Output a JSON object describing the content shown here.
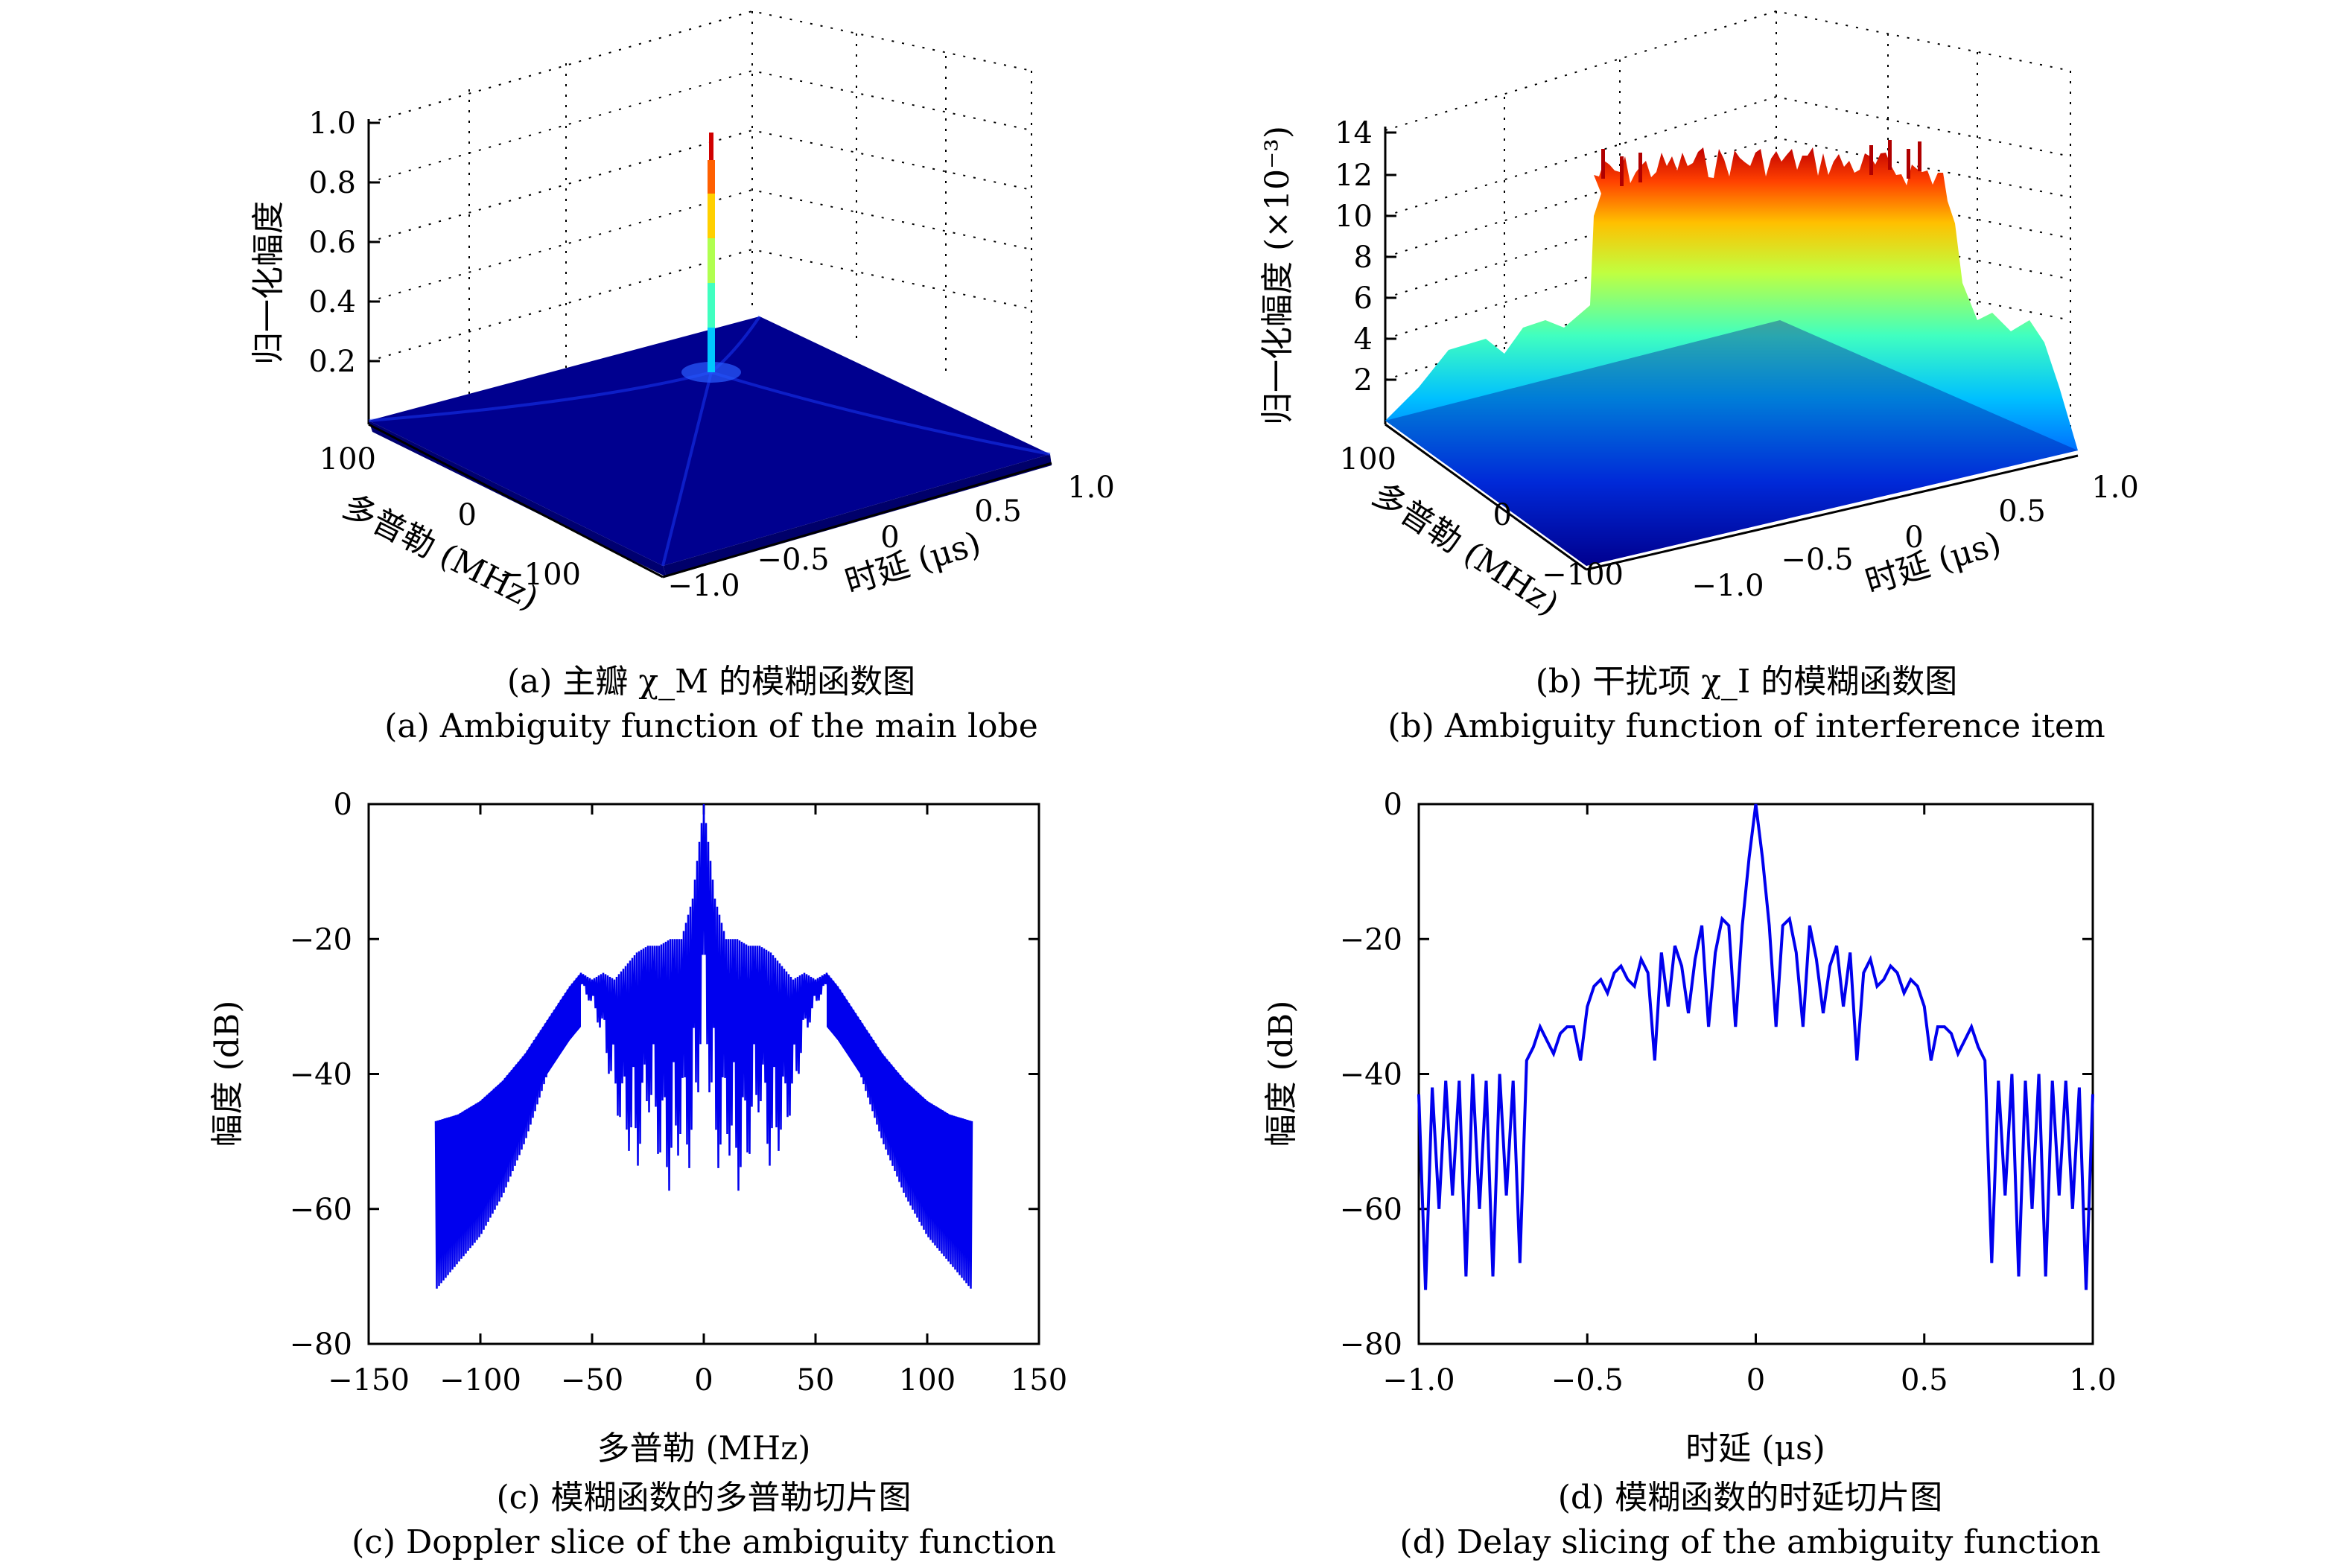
{
  "captions": {
    "a_cn": "(a) 主瓣 χ_M 的模糊函数图",
    "a_en": "(a) Ambiguity function of the main lobe",
    "b_cn": "(b) 干扰项 χ_I 的模糊函数图",
    "b_en": "(b) Ambiguity function of interference item",
    "c_cn": "(c) 模糊函数的多普勒切片图",
    "c_en": "(c) Doppler slice of the ambiguity function",
    "d_cn": "(d) 模糊函数的时延切片图",
    "d_en": "(d) Delay slicing of the ambiguity function"
  },
  "colors": {
    "line": "#0000ee",
    "surface_low": "#00008f",
    "surface_high": "#ff0000"
  },
  "chart_data": [
    {
      "type": "surface",
      "zlabel": "归一化幅度",
      "xlabel": "时延 (μs)",
      "ylabel": "多普勒 (MHz)",
      "z_ticks": [
        "0.2",
        "0.4",
        "0.6",
        "0.8",
        "1.0"
      ],
      "x_ticks": [
        "−1.0",
        "−0.5",
        "0",
        "0.5",
        "1.0"
      ],
      "y_ticks": [
        "100",
        "0",
        "−100"
      ],
      "zlim": [
        0,
        1.0
      ],
      "peak": {
        "x": 0,
        "y": 0,
        "z": 1.0
      },
      "floor_level": 0.01,
      "colormap": "jet"
    },
    {
      "type": "surface",
      "zlabel": "归一化幅度 (×10⁻³)",
      "xlabel": "时延 (μs)",
      "ylabel": "多普勒 (MHz)",
      "z_ticks": [
        "2",
        "4",
        "6",
        "8",
        "10",
        "12",
        "14"
      ],
      "x_ticks": [
        "−1.0",
        "−0.5",
        "0",
        "0.5",
        "1.0"
      ],
      "y_ticks": [
        "100",
        "0",
        "−100"
      ],
      "zlim": [
        0,
        14
      ],
      "plateau_level": 11.5,
      "shoulder_level": 4,
      "colormap": "jet"
    },
    {
      "type": "line",
      "xlabel": "多普勒 (MHz)",
      "ylabel": "幅度 (dB)",
      "xlim": [
        -150,
        150
      ],
      "ylim": [
        -80,
        0
      ],
      "x_ticks": [
        "−150",
        "−100",
        "−50",
        "0",
        "50",
        "100",
        "150"
      ],
      "y_ticks": [
        "0",
        "−20",
        "−40",
        "−60",
        "−80"
      ],
      "x": [
        -120,
        -110,
        -100,
        -90,
        -80,
        -70,
        -60,
        -55,
        -50,
        -45,
        -40,
        -35,
        -30,
        -25,
        -20,
        -15,
        -10,
        -5,
        0,
        5,
        10,
        15,
        20,
        25,
        30,
        35,
        40,
        45,
        50,
        55,
        60,
        70,
        80,
        90,
        100,
        110,
        120
      ],
      "envelope_upper": [
        -47,
        -46,
        -44,
        -41,
        -37,
        -32,
        -27,
        -25,
        -26,
        -25,
        -26,
        -24,
        -22,
        -21,
        -21,
        -20,
        -20,
        -14,
        0,
        -14,
        -20,
        -20,
        -21,
        -21,
        -22,
        -24,
        -26,
        -25,
        -26,
        -25,
        -27,
        -32,
        -37,
        -41,
        -44,
        -46,
        -47
      ],
      "envelope_lower": [
        -72,
        -68,
        -64,
        -58,
        -50,
        -40,
        -31,
        -27,
        -30,
        -35,
        -45,
        -50,
        -55,
        -45,
        -53,
        -58,
        -50,
        -56,
        -30,
        -56,
        -50,
        -58,
        -53,
        -45,
        -55,
        -50,
        -45,
        -35,
        -30,
        -27,
        -31,
        -40,
        -50,
        -58,
        -64,
        -68,
        -72
      ]
    },
    {
      "type": "line",
      "xlabel": "时延 (μs)",
      "ylabel": "幅度 (dB)",
      "xlim": [
        -1.0,
        1.0
      ],
      "ylim": [
        -80,
        0
      ],
      "x_ticks": [
        "−1.0",
        "−0.5",
        "0",
        "0.5",
        "1.0"
      ],
      "y_ticks": [
        "0",
        "−20",
        "−40",
        "−60",
        "−80"
      ],
      "x": [
        -1.0,
        -0.98,
        -0.96,
        -0.94,
        -0.92,
        -0.9,
        -0.88,
        -0.86,
        -0.84,
        -0.82,
        -0.8,
        -0.78,
        -0.76,
        -0.74,
        -0.72,
        -0.7,
        -0.68,
        -0.66,
        -0.64,
        -0.62,
        -0.6,
        -0.58,
        -0.56,
        -0.54,
        -0.52,
        -0.5,
        -0.48,
        -0.46,
        -0.44,
        -0.42,
        -0.4,
        -0.38,
        -0.36,
        -0.34,
        -0.32,
        -0.3,
        -0.28,
        -0.26,
        -0.24,
        -0.22,
        -0.2,
        -0.18,
        -0.16,
        -0.14,
        -0.12,
        -0.1,
        -0.08,
        -0.06,
        -0.04,
        -0.02,
        0,
        0.02,
        0.04,
        0.06,
        0.08,
        0.1,
        0.12,
        0.14,
        0.16,
        0.18,
        0.2,
        0.22,
        0.24,
        0.26,
        0.28,
        0.3,
        0.32,
        0.34,
        0.36,
        0.38,
        0.4,
        0.42,
        0.44,
        0.46,
        0.48,
        0.5,
        0.52,
        0.54,
        0.56,
        0.58,
        0.6,
        0.62,
        0.64,
        0.66,
        0.68,
        0.7,
        0.72,
        0.74,
        0.76,
        0.78,
        0.8,
        0.82,
        0.84,
        0.86,
        0.88,
        0.9,
        0.92,
        0.94,
        0.96,
        0.98,
        1.0
      ],
      "y": [
        -43,
        -72,
        -42,
        -60,
        -41,
        -58,
        -41,
        -70,
        -40,
        -60,
        -41,
        -70,
        -40,
        -58,
        -41,
        -68,
        -38,
        -36,
        -33,
        -35,
        -37,
        -34,
        -33,
        -33,
        -38,
        -30,
        -27,
        -26,
        -28,
        -25,
        -24,
        -26,
        -27,
        -23,
        -25,
        -38,
        -22,
        -30,
        -21,
        -24,
        -31,
        -23,
        -18,
        -33,
        -22,
        -17,
        -18,
        -33,
        -18,
        -8,
        0,
        -8,
        -18,
        -33,
        -18,
        -17,
        -22,
        -33,
        -18,
        -23,
        -31,
        -24,
        -21,
        -30,
        -22,
        -38,
        -25,
        -23,
        -27,
        -26,
        -24,
        -25,
        -28,
        -26,
        -27,
        -30,
        -38,
        -33,
        -33,
        -34,
        -37,
        -35,
        -33,
        -36,
        -38,
        -68,
        -41,
        -58,
        -40,
        -70,
        -41,
        -60,
        -40,
        -70,
        -41,
        -58,
        -41,
        -60,
        -42,
        -72,
        -43
      ]
    }
  ]
}
